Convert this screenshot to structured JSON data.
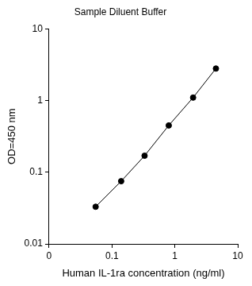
{
  "chart_data": {
    "type": "line",
    "title": "Sample Diluent Buffer",
    "x_label": "Human IL-1ra concentration (ng/ml)",
    "y_label": "OD=450 nm",
    "x": [
      0.055,
      0.14,
      0.33,
      0.8,
      1.95,
      4.5
    ],
    "values": [
      0.033,
      0.075,
      0.17,
      0.45,
      1.1,
      2.8
    ],
    "color": "#000000",
    "marker": "circle",
    "line_style": "solid",
    "log": true,
    "grid": false,
    "xlim": [
      0.01,
      10
    ],
    "xticks": [
      {
        "value": 0.01,
        "label": "0"
      },
      0.1,
      1,
      10
    ],
    "ylim": [
      0.01,
      10
    ],
    "yticks": [
      0.01,
      0.1,
      1,
      10
    ]
  }
}
